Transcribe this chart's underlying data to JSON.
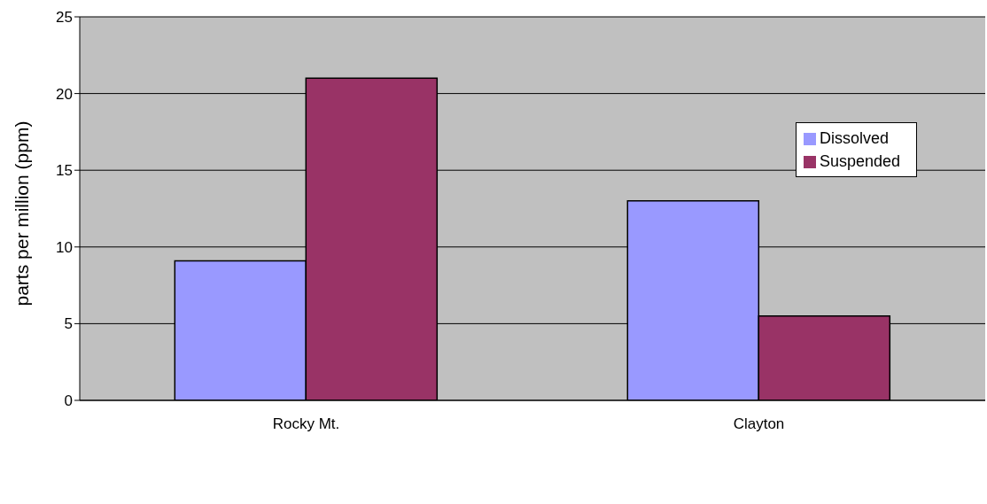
{
  "chart_data": {
    "type": "bar",
    "ylabel": "parts per million (ppm)",
    "categories": [
      "Rocky Mt.",
      "Clayton"
    ],
    "series": [
      {
        "name": "Dissolved",
        "color": "#9999ff",
        "values": [
          9.1,
          13
        ]
      },
      {
        "name": "Suspended",
        "color": "#993366",
        "values": [
          21,
          5.5
        ]
      }
    ],
    "ylim": [
      0,
      25
    ],
    "yticks": [
      0,
      5,
      10,
      15,
      20,
      25
    ],
    "grid": "y",
    "legend": "right"
  }
}
